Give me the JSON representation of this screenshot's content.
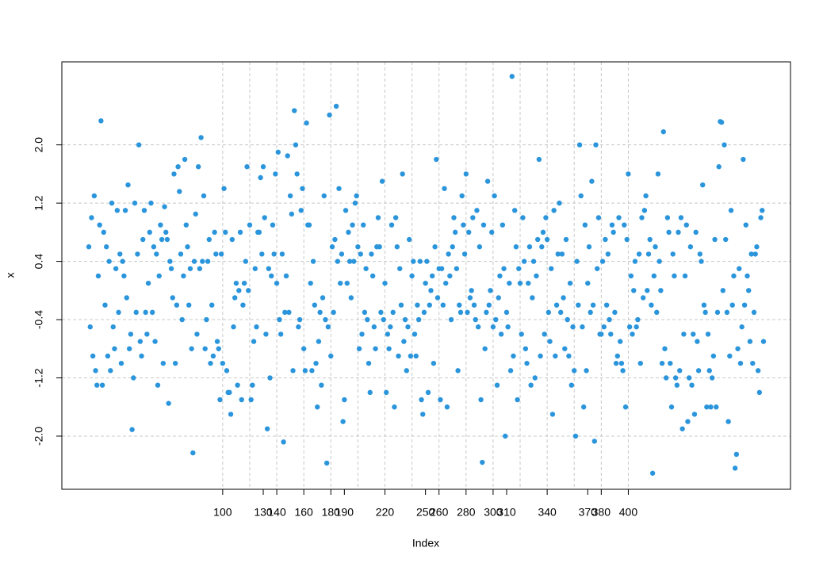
{
  "chart_data": {
    "type": "scatter",
    "xlabel": "Index",
    "ylabel": "x",
    "xlim": [
      -18.96,
      519.96
    ],
    "ylim": [
      -2.73,
      3.14
    ],
    "xticks": [
      100,
      130,
      140,
      160,
      180,
      190,
      220,
      250,
      260,
      280,
      300,
      310,
      340,
      370,
      380,
      400
    ],
    "xgrid": [
      100,
      120,
      140,
      160,
      180,
      200,
      220,
      240,
      260,
      280,
      300,
      320,
      340,
      360,
      380,
      400
    ],
    "yticks": [
      {
        "value": 2,
        "label": "2.0"
      },
      1.2,
      0.4,
      -0.4,
      -1.2,
      {
        "value": -2,
        "label": "-2.0"
      }
    ],
    "grid": true,
    "color": "#2b95dc",
    "values": [
      0.6,
      -0.5,
      1.0,
      -0.9,
      1.3,
      -1.1,
      -1.3,
      0.2,
      0.9,
      2.33,
      -1.3,
      0.8,
      -0.2,
      0.6,
      -0.9,
      0.4,
      -1.1,
      1.2,
      -0.5,
      -0.8,
      0.3,
      1.1,
      -0.3,
      0.5,
      -1.0,
      0.4,
      0.2,
      1.1,
      -0.1,
      1.45,
      -0.8,
      -0.6,
      -1.91,
      -1.2,
      1.2,
      -0.3,
      0.5,
      2.0,
      -0.7,
      -0.9,
      0.7,
      1.1,
      -0.3,
      -0.6,
      0.1,
      0.8,
      1.2,
      -0.3,
      0.6,
      -0.7,
      0.5,
      -1.3,
      0.2,
      0.9,
      0.7,
      -1.0,
      1.15,
      0.8,
      0.7,
      -1.55,
      0.4,
      0.3,
      -0.1,
      1.6,
      -1.0,
      -0.2,
      1.7,
      1.36,
      0.5,
      -0.4,
      0.2,
      1.8,
      0.9,
      0.6,
      -0.2,
      0.3,
      -0.8,
      -2.23,
      0.4,
      1.05,
      -0.6,
      1.7,
      0.3,
      2.1,
      0.4,
      1.3,
      -0.8,
      -0.4,
      0.4,
      0.7,
      -1.0,
      -0.2,
      -0.9,
      0.8,
      0.5,
      -0.7,
      -0.8,
      -1.5,
      0.5,
      -1.0,
      1.4,
      0.8,
      -1.1,
      -1.4,
      -1.4,
      -1.7,
      0.7,
      -0.5,
      -0.1,
      0.1,
      -1.3,
      0.0,
      0.8,
      -1.5,
      -0.2,
      0.1,
      0.4,
      1.7,
      0.0,
      0.9,
      -1.5,
      -1.3,
      -0.7,
      0.3,
      -0.5,
      0.8,
      0.8,
      1.55,
      0.5,
      1.7,
      1.0,
      -0.6,
      -1.9,
      0.3,
      -1.2,
      0.2,
      0.9,
      0.5,
      1.6,
      0.1,
      1.9,
      -0.4,
      -0.6,
      0.5,
      -2.08,
      -0.3,
      0.2,
      1.85,
      -0.3,
      1.3,
      1.05,
      -1.1,
      2.47,
      2.0,
      1.6,
      -0.5,
      -0.4,
      1.1,
      1.4,
      -0.8,
      -1.1,
      2.3,
      0.9,
      0.9,
      0.1,
      -1.1,
      0.4,
      -0.2,
      -1.0,
      -1.6,
      -0.7,
      -0.3,
      -1.3,
      -0.1,
      1.3,
      -0.4,
      -2.37,
      -0.5,
      2.41,
      -0.9,
      0.6,
      -0.3,
      0.7,
      2.53,
      0.4,
      1.4,
      0.1,
      0.5,
      -1.8,
      -1.5,
      1.1,
      0.1,
      0.8,
      0.4,
      -0.1,
      0.9,
      0.4,
      1.2,
      1.3,
      0.6,
      -0.8,
      0.5,
      -0.6,
      0.9,
      -0.3,
      0.3,
      -0.4,
      -1.0,
      -1.4,
      0.5,
      0.2,
      -0.5,
      -0.8,
      0.6,
      1.0,
      0.6,
      -0.3,
      1.5,
      -0.4,
      0.1,
      -1.4,
      -0.6,
      -0.8,
      -0.5,
      0.9,
      -0.3,
      -1.6,
      1.0,
      0.6,
      -0.9,
      0.3,
      -0.2,
      1.6,
      -0.7,
      -0.4,
      -1.1,
      -0.5,
      0.7,
      -0.9,
      0.2,
      0.4,
      -0.6,
      -0.9,
      -0.2,
      -0.4,
      0.4,
      -1.5,
      -1.7,
      -0.3,
      0.1,
      0.4,
      -1.4,
      -0.2,
      0.0,
      0.2,
      -1.0,
      0.6,
      1.8,
      -0.1,
      0.3,
      -1.5,
      0.3,
      -0.2,
      1.4,
      0.1,
      -1.6,
      0.5,
      0.2,
      -0.4,
      0.6,
      1.0,
      0.8,
      0.3,
      -1.1,
      -0.2,
      -0.3,
      1.3,
      0.9,
      0.5,
      1.6,
      -0.3,
      0.8,
      -0.1,
      0.0,
      1.0,
      -0.2,
      -0.4,
      1.1,
      -0.5,
      0.6,
      -1.5,
      -2.36,
      0.9,
      -0.8,
      -0.3,
      1.5,
      -0.2,
      0.0,
      0.8,
      -0.5,
      1.3,
      -0.4,
      -1.3,
      -0.1,
      0.2,
      -0.6,
      0.9,
      0.3,
      -2.0,
      -0.3,
      -0.5,
      0.1,
      -1.1,
      2.94,
      -0.9,
      1.1,
      0.6,
      -1.5,
      0.3,
      0.1,
      -0.6,
      1.0,
      0.4,
      -0.8,
      -1.0,
      0.1,
      0.6,
      -1.3,
      -0.1,
      0.4,
      -1.2,
      0.2,
      0.7,
      1.8,
      -0.9,
      0.6,
      0.8,
      -0.6,
      1.0,
      0.7,
      -0.3,
      -0.7,
      0.3,
      -1.7,
      1.1,
      -0.9,
      -0.2,
      0.5,
      1.2,
      -0.3,
      0.5,
      -0.1,
      -0.8,
      0.7,
      -0.4,
      -0.9,
      0.1,
      -1.3,
      -0.5,
      -1.1,
      -2.0,
      0.4,
      -0.2,
      2.0,
      1.3,
      -0.5,
      -1.6,
      0.9,
      -1.1,
      0.1,
      0.6,
      -0.3,
      1.5,
      -0.2,
      -2.07,
      2.0,
      0.3,
      1.0,
      -0.6,
      -0.6,
      0.4,
      -0.5,
      0.7,
      -0.2,
      0.5,
      -0.4,
      -0.6,
      0.9,
      0.8,
      -0.3,
      -1.0,
      -0.9,
      1.0,
      -0.7,
      -1.0,
      -1.1,
      0.9,
      -1.6,
      0.7,
      1.6,
      -0.5,
      0.2,
      -0.6,
      0.0,
      0.4,
      -0.5,
      -0.4,
      0.5,
      -1.0,
      1.0,
      -0.1,
      1.1,
      1.3,
      0.0,
      0.5,
      0.7,
      -0.2,
      -2.51,
      0.2,
      0.6,
      -0.3,
      1.6,
      0.4,
      0.0,
      -1.0,
      2.18,
      -0.8,
      -1.2,
      1.0,
      0.8,
      -1.0,
      -1.6,
      0.5,
      0.2,
      -1.2,
      -1.3,
      0.8,
      -1.1,
      1.0,
      -1.9,
      -0.6,
      0.2,
      0.9,
      -1.8,
      -1.2,
      0.6,
      -1.3,
      -0.6,
      -1.7,
      0.8,
      -0.7,
      -1.1,
      0.5,
      0.4,
      1.45,
      -0.2,
      -0.3,
      -1.6,
      -0.6,
      -1.1,
      -1.6,
      -1.2,
      -0.9,
      0.7,
      -1.6,
      -0.3,
      1.7,
      2.32,
      2.31,
      0.0,
      2.0,
      0.7,
      -0.3,
      -1.8,
      -0.9,
      1.1,
      -0.2,
      0.2,
      -2.44,
      -2.25,
      -0.8,
      0.3,
      -1.0,
      -0.5,
      1.8,
      -0.2,
      0.9,
      0.2,
      0.0,
      -0.7,
      0.5,
      -1.0,
      -0.3,
      0.5,
      0.6,
      -1.1,
      -1.4,
      1.0,
      1.1,
      -0.7
    ]
  }
}
